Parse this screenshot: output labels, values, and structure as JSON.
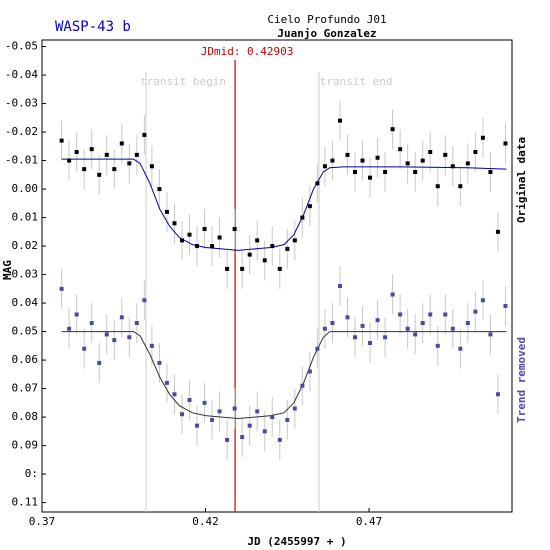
{
  "chart_data": {
    "type": "scatter",
    "title": "WASP-43 b",
    "subtitle": "Cielo Profundo J01",
    "author": "Juanjo Gonzalez",
    "x_label": "JD (2455997 + )",
    "y_label": "MAG",
    "xlim": [
      0.37,
      0.5137
    ],
    "ylim": [
      -0.0523,
      0.1133
    ],
    "y_inverted": true,
    "xticks": [
      0.37,
      0.42,
      0.47
    ],
    "yticks": [
      -0.05,
      -0.04,
      -0.03,
      -0.02,
      -0.01,
      {
        "value": 0,
        "label": "0.00"
      },
      0.01,
      0.02,
      0.03,
      0.04,
      0.05,
      0.06,
      0.07,
      0.08,
      0.09,
      {
        "value": 0.1,
        "label": "0:"
      },
      0.11
    ],
    "grid": false,
    "annotations": [
      {
        "value": 0.42903,
        "label": "JDmid: 0.42903",
        "color": "#cc0000"
      },
      {
        "value": 0.4018,
        "label": "transit begin",
        "color": "#cccccc"
      },
      {
        "value": 0.4547,
        "label": "transit end",
        "color": "#cccccc"
      }
    ],
    "x": [
      0.376,
      0.3783,
      0.3806,
      0.3829,
      0.3852,
      0.3875,
      0.3898,
      0.3921,
      0.3944,
      0.3967,
      0.399,
      0.4013,
      0.4036,
      0.4059,
      0.4082,
      0.4105,
      0.4128,
      0.4151,
      0.4174,
      0.4197,
      0.422,
      0.4243,
      0.4266,
      0.4289,
      0.4312,
      0.4335,
      0.4358,
      0.4381,
      0.4404,
      0.4427,
      0.445,
      0.4473,
      0.4496,
      0.4519,
      0.4542,
      0.4565,
      0.4588,
      0.4611,
      0.4634,
      0.4657,
      0.468,
      0.4703,
      0.4726,
      0.4749,
      0.4772,
      0.4795,
      0.4818,
      0.4841,
      0.4864,
      0.4887,
      0.491,
      0.4933,
      0.4956,
      0.4979,
      0.5002,
      0.5025,
      0.5048,
      0.5071,
      0.5094,
      0.5117
    ],
    "series": [
      {
        "name": "Original data",
        "color": "#000000",
        "label_color": "#000000",
        "error": 0.007,
        "values": [
          -0.017,
          -0.01,
          -0.013,
          -0.007,
          -0.014,
          -0.005,
          -0.012,
          -0.007,
          -0.016,
          -0.009,
          -0.012,
          -0.019,
          -0.008,
          0.0,
          0.008,
          0.012,
          0.018,
          0.016,
          0.02,
          0.014,
          0.02,
          0.017,
          0.028,
          0.014,
          0.028,
          0.023,
          0.018,
          0.025,
          0.02,
          0.028,
          0.021,
          0.018,
          0.01,
          0.006,
          -0.002,
          -0.008,
          -0.01,
          -0.024,
          -0.012,
          -0.006,
          -0.01,
          -0.004,
          -0.011,
          -0.006,
          -0.021,
          -0.014,
          -0.009,
          -0.006,
          -0.01,
          -0.013,
          -0.001,
          -0.012,
          -0.008,
          -0.001,
          -0.009,
          -0.013,
          -0.018,
          -0.006,
          0.015,
          -0.016
        ]
      },
      {
        "name": "Trend removed",
        "color": "#4b4b9b",
        "label_color": "#5050a0",
        "error": 0.007,
        "values": [
          0.035,
          0.049,
          0.044,
          0.056,
          0.047,
          0.061,
          0.051,
          0.053,
          0.045,
          0.052,
          0.047,
          0.039,
          0.055,
          0.061,
          0.068,
          0.072,
          0.079,
          0.074,
          0.083,
          0.075,
          0.081,
          0.078,
          0.088,
          0.077,
          0.087,
          0.083,
          0.078,
          0.085,
          0.08,
          0.088,
          0.081,
          0.077,
          0.069,
          0.064,
          0.056,
          0.049,
          0.047,
          0.034,
          0.045,
          0.052,
          0.048,
          0.054,
          0.046,
          0.052,
          0.037,
          0.044,
          0.049,
          0.051,
          0.047,
          0.044,
          0.055,
          0.044,
          0.049,
          0.056,
          0.047,
          0.043,
          0.039,
          0.051,
          0.072,
          0.041
        ]
      }
    ],
    "model_x": [
      0.376,
      0.398,
      0.4,
      0.403,
      0.406,
      0.409,
      0.412,
      0.416,
      0.42,
      0.425,
      0.43,
      0.435,
      0.44,
      0.444,
      0.447,
      0.45,
      0.453,
      0.456,
      0.458,
      0.462,
      0.48,
      0.5,
      0.512
    ],
    "models": [
      {
        "color": "#0000aa",
        "values": [
          -0.0105,
          -0.0105,
          -0.009,
          -0.002,
          0.007,
          0.013,
          0.017,
          0.0195,
          0.0205,
          0.021,
          0.0215,
          0.021,
          0.0205,
          0.0195,
          0.016,
          0.009,
          0.0,
          -0.006,
          -0.0075,
          -0.0078,
          -0.0078,
          -0.0075,
          -0.007
        ]
      },
      {
        "color": "#333333",
        "values": [
          0.05,
          0.05,
          0.0515,
          0.058,
          0.066,
          0.072,
          0.076,
          0.0785,
          0.0795,
          0.08,
          0.0805,
          0.08,
          0.0795,
          0.0785,
          0.075,
          0.068,
          0.059,
          0.052,
          0.05,
          0.05,
          0.05,
          0.05,
          0.05
        ]
      }
    ]
  }
}
